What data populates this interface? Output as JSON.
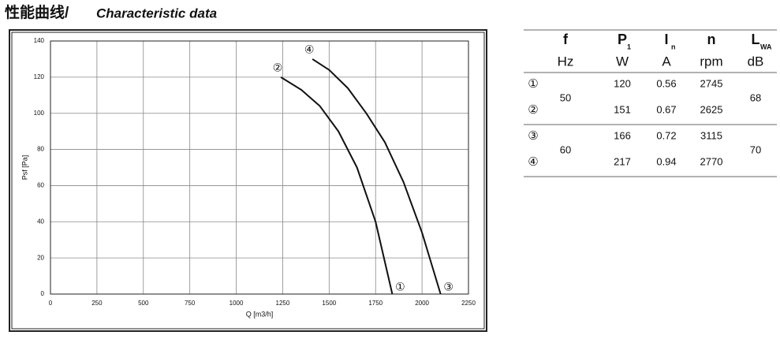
{
  "title": {
    "cn": "性能曲线/",
    "en": "Characteristic data"
  },
  "chart_data": {
    "type": "line",
    "x_label": "Q [m3/h]",
    "y_label": "Psf [Pa]",
    "xlim": [
      0,
      2250
    ],
    "xticks": [
      0,
      250,
      500,
      750,
      1000,
      1250,
      1500,
      1750,
      2000,
      2250
    ],
    "ylim": [
      0,
      140
    ],
    "yticks": [
      0,
      20,
      40,
      60,
      80,
      100,
      120,
      140
    ],
    "grid": true,
    "series": [
      {
        "start_label": "②",
        "end_label": "①",
        "color": "#111111",
        "x": [
          1240,
          1350,
          1450,
          1550,
          1650,
          1750,
          1840
        ],
        "values": [
          120,
          113,
          104,
          90,
          70,
          40,
          0
        ]
      },
      {
        "start_label": "④",
        "end_label": "③",
        "color": "#111111",
        "x": [
          1410,
          1500,
          1600,
          1700,
          1800,
          1900,
          2000,
          2100
        ],
        "values": [
          130,
          124,
          114,
          100,
          84,
          62,
          34,
          0
        ]
      }
    ]
  },
  "table": {
    "columns": [
      {
        "symbol": "f",
        "unit": "Hz"
      },
      {
        "symbol": "P",
        "sub": "1",
        "unit": "W"
      },
      {
        "symbol": "I",
        "sub": "n",
        "unit": "A"
      },
      {
        "symbol": "n",
        "unit": "rpm"
      },
      {
        "symbol": "L",
        "sub": "WA",
        "unit": "dB"
      }
    ],
    "groups": [
      {
        "f": "50",
        "lwa": "68",
        "rows": [
          [
            "①",
            "120",
            "0.56",
            "2745"
          ],
          [
            "②",
            "151",
            "0.67",
            "2625"
          ]
        ]
      },
      {
        "f": "60",
        "lwa": "70",
        "rows": [
          [
            "③",
            "166",
            "0.72",
            "3115"
          ],
          [
            "④",
            "217",
            "0.94",
            "2770"
          ]
        ]
      }
    ]
  }
}
